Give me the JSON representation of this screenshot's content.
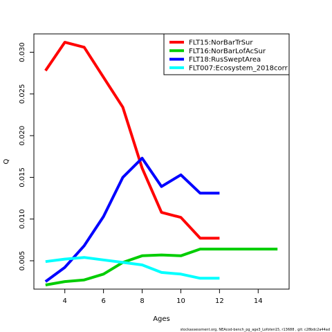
{
  "chart_data": {
    "type": "line",
    "title": "",
    "xlabel": "Ages",
    "ylabel": "Q",
    "xlim": [
      2.4,
      15.6
    ],
    "ylim": [
      0.0016,
      0.0322
    ],
    "xticks": [
      4,
      6,
      8,
      10,
      12,
      14
    ],
    "yticks": [
      0.005,
      0.01,
      0.015,
      0.02,
      0.025,
      0.03
    ],
    "ytick_labels": [
      "0.005",
      "0.010",
      "0.015",
      "0.020",
      "0.025",
      "0.030"
    ],
    "legend_position": "top-right",
    "grid": false,
    "series": [
      {
        "name": "FLT15:NorBarTrSur",
        "color": "#ff0000",
        "x": [
          3,
          4,
          5,
          6,
          7,
          8,
          9,
          10,
          11,
          12
        ],
        "y": [
          0.0278,
          0.0312,
          0.0306,
          0.027,
          0.0234,
          0.0161,
          0.0108,
          0.0102,
          0.0077,
          0.0077
        ]
      },
      {
        "name": "FLT16:NorBarLofAcSur",
        "color": "#00cd00",
        "x": [
          3,
          4,
          5,
          6,
          7,
          8,
          9,
          10,
          11,
          12,
          13,
          14,
          15
        ],
        "y": [
          0.0021,
          0.0025,
          0.0027,
          0.0034,
          0.0048,
          0.0056,
          0.0057,
          0.0056,
          0.0064,
          0.0064,
          0.0064,
          0.0064,
          0.0064
        ]
      },
      {
        "name": "FLT18:RusSweptArea",
        "color": "#0000ff",
        "x": [
          3,
          4,
          5,
          6,
          7,
          8,
          9,
          10,
          11,
          12
        ],
        "y": [
          0.0025,
          0.0042,
          0.0068,
          0.0103,
          0.015,
          0.0173,
          0.0139,
          0.0153,
          0.0131,
          0.0131
        ]
      },
      {
        "name": "FLT007:Ecosystem_2018corr",
        "color": "#00ffff",
        "x": [
          3,
          4,
          5,
          6,
          7,
          8,
          9,
          10,
          11,
          12
        ],
        "y": [
          0.0049,
          0.0052,
          0.0054,
          0.0051,
          0.0048,
          0.0045,
          0.0036,
          0.0034,
          0.0029,
          0.0029
        ]
      }
    ]
  },
  "footer_text": "stockassessment.org, NEAcod-bench_pg_age3_Lofoten15, r13688 , git: c28bdc2a44ad"
}
